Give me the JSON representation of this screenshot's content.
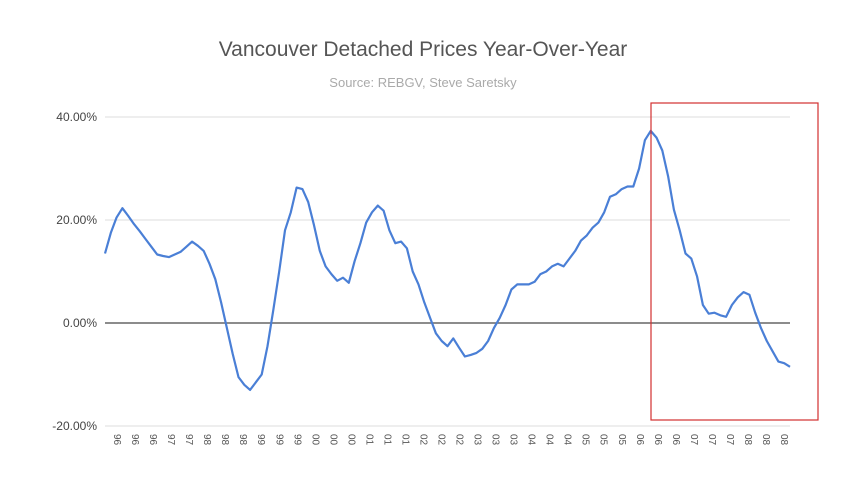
{
  "chart_data": {
    "type": "line",
    "title": "Vancouver Detached Prices Year-Over-Year",
    "subtitle": "Source: REBGV, Steve Saretsky",
    "xlabel": "",
    "ylabel": "",
    "ylim": [
      -20,
      40
    ],
    "yticks": [
      "40.00%",
      "20.00%",
      "0.00%",
      "-20.00%"
    ],
    "ytick_values": [
      40,
      20,
      0,
      -20
    ],
    "grid": true,
    "legend": "none",
    "x_tick_labels": [
      "96",
      "96",
      "96",
      "97",
      "97",
      "98",
      "98",
      "98",
      "99",
      "99",
      "99",
      "00",
      "00",
      "00",
      "01",
      "01",
      "01",
      "02",
      "02",
      "02",
      "03",
      "03",
      "03",
      "04",
      "04",
      "04",
      "05",
      "05",
      "05",
      "06",
      "06",
      "06",
      "07",
      "07",
      "07",
      "08",
      "08",
      "08"
    ],
    "series": [
      {
        "color": "#4a7fd6",
        "values": [
          13.5,
          17.5,
          20.5,
          22.3,
          20.8,
          19.2,
          17.8,
          16.3,
          14.8,
          13.3,
          13.0,
          12.8,
          13.3,
          13.8,
          14.8,
          15.8,
          15.0,
          14.0,
          11.5,
          8.5,
          4.0,
          -1.0,
          -6.0,
          -10.5,
          -12.0,
          -13.0,
          -11.5,
          -10.0,
          -4.5,
          2.5,
          10.0,
          18.0,
          21.5,
          26.3,
          26.0,
          23.5,
          19.0,
          14.0,
          11.0,
          9.5,
          8.2,
          8.8,
          7.8,
          12.0,
          15.5,
          19.5,
          21.5,
          22.8,
          21.8,
          18.0,
          15.5,
          15.8,
          14.5,
          10.0,
          7.5,
          4.0,
          1.0,
          -2.0,
          -3.5,
          -4.5,
          -3.0,
          -4.8,
          -6.5,
          -6.2,
          -5.8,
          -5.0,
          -3.5,
          -1.0,
          1.0,
          3.5,
          6.5,
          7.5,
          7.5,
          7.5,
          8.0,
          9.5,
          10.0,
          11.0,
          11.5,
          11.0,
          12.5,
          14.0,
          16.0,
          17.0,
          18.5,
          19.5,
          21.5,
          24.5,
          25.0,
          26.0,
          26.5,
          26.5,
          30.0,
          35.5,
          37.3,
          36.0,
          33.5,
          28.5,
          22.0,
          18.0,
          13.5,
          12.5,
          9.0,
          3.5,
          1.8,
          2.0,
          1.5,
          1.2,
          3.5,
          5.0,
          6.0,
          5.5,
          2.0,
          -1.0,
          -3.5,
          -5.5,
          -7.5,
          -7.8,
          -8.5
        ]
      }
    ],
    "highlight_box_color": "#d32f2f",
    "zero_line_color": "#666666",
    "grid_color": "#dddddd",
    "title_color": "#555555",
    "subtitle_color": "#aaaaaa"
  }
}
